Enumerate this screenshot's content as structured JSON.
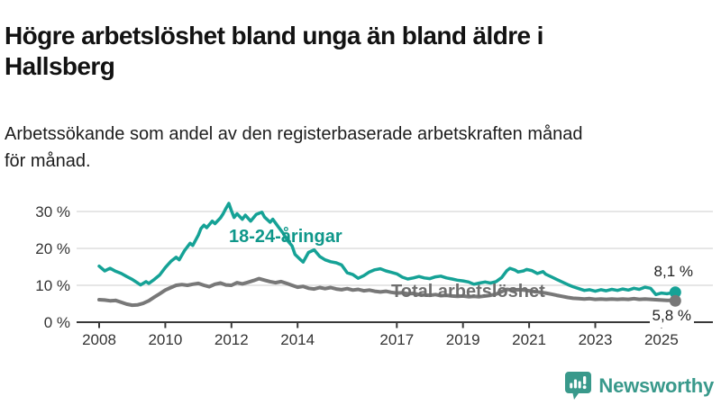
{
  "header": {
    "title_line1": "Högre arbetslöshet bland unga än bland äldre i",
    "title_line2": "Hallsberg",
    "subtitle_line1": "Arbetssökande som andel av den registerbaserade arbetskraften månad",
    "subtitle_line2": "för månad."
  },
  "chart_data": {
    "type": "line",
    "title": "Högre arbetslöshet bland unga än bland äldre i Hallsberg",
    "subtitle": "Arbetssökande som andel av den registerbaserade arbetskraften månad för månad.",
    "xlabel": "",
    "ylabel": "",
    "xlim": [
      2007.4,
      2025.9
    ],
    "ylim": [
      0,
      33
    ],
    "grid": "horizontal",
    "legend_position": "inline-labels",
    "y_ticks": [
      {
        "label": "30 %",
        "value": 30
      },
      {
        "label": "20 %",
        "value": 20
      },
      {
        "label": "10 %",
        "value": 10
      },
      {
        "label": "0 %",
        "value": 0
      }
    ],
    "x_ticks": [
      {
        "label": "2008",
        "year": 2008
      },
      {
        "label": "2010",
        "year": 2010
      },
      {
        "label": "2012",
        "year": 2012
      },
      {
        "label": "2014",
        "year": 2014
      },
      {
        "label": "2017",
        "year": 2017
      },
      {
        "label": "2019",
        "year": 2019
      },
      {
        "label": "2021",
        "year": 2021
      },
      {
        "label": "2023",
        "year": 2023
      },
      {
        "label": "2025",
        "year": 2025
      }
    ],
    "series": [
      {
        "name": "Total arbetslöshet",
        "color": "#787878",
        "line_width": 4,
        "end_label": "5,8 %",
        "end_value": 5.8,
        "points": [
          [
            2008.0,
            6.1
          ],
          [
            2008.17,
            6.0
          ],
          [
            2008.33,
            5.8
          ],
          [
            2008.5,
            5.9
          ],
          [
            2008.67,
            5.4
          ],
          [
            2008.83,
            4.9
          ],
          [
            2009.0,
            4.6
          ],
          [
            2009.17,
            4.7
          ],
          [
            2009.33,
            5.1
          ],
          [
            2009.5,
            5.8
          ],
          [
            2009.67,
            6.8
          ],
          [
            2009.83,
            7.7
          ],
          [
            2010.0,
            8.7
          ],
          [
            2010.17,
            9.4
          ],
          [
            2010.33,
            10.0
          ],
          [
            2010.5,
            10.2
          ],
          [
            2010.67,
            10.0
          ],
          [
            2010.83,
            10.3
          ],
          [
            2011.0,
            10.5
          ],
          [
            2011.17,
            10.0
          ],
          [
            2011.33,
            9.6
          ],
          [
            2011.5,
            10.3
          ],
          [
            2011.67,
            10.6
          ],
          [
            2011.83,
            10.1
          ],
          [
            2012.0,
            10.0
          ],
          [
            2012.17,
            10.7
          ],
          [
            2012.33,
            10.4
          ],
          [
            2012.5,
            10.8
          ],
          [
            2012.67,
            11.3
          ],
          [
            2012.83,
            11.8
          ],
          [
            2013.0,
            11.4
          ],
          [
            2013.17,
            11.0
          ],
          [
            2013.33,
            10.7
          ],
          [
            2013.5,
            11.0
          ],
          [
            2013.67,
            10.5
          ],
          [
            2013.83,
            10.0
          ],
          [
            2014.0,
            9.5
          ],
          [
            2014.17,
            9.7
          ],
          [
            2014.33,
            9.2
          ],
          [
            2014.5,
            9.0
          ],
          [
            2014.67,
            9.4
          ],
          [
            2014.83,
            9.1
          ],
          [
            2015.0,
            9.4
          ],
          [
            2015.17,
            9.0
          ],
          [
            2015.33,
            8.8
          ],
          [
            2015.5,
            9.1
          ],
          [
            2015.67,
            8.7
          ],
          [
            2015.83,
            8.9
          ],
          [
            2016.0,
            8.5
          ],
          [
            2016.17,
            8.7
          ],
          [
            2016.33,
            8.4
          ],
          [
            2016.5,
            8.2
          ],
          [
            2016.67,
            8.4
          ],
          [
            2016.83,
            8.1
          ],
          [
            2017.0,
            7.9
          ],
          [
            2017.17,
            8.0
          ],
          [
            2017.33,
            7.7
          ],
          [
            2017.5,
            7.8
          ],
          [
            2017.67,
            7.5
          ],
          [
            2017.83,
            7.4
          ],
          [
            2018.0,
            7.3
          ],
          [
            2018.17,
            7.5
          ],
          [
            2018.33,
            7.2
          ],
          [
            2018.5,
            7.3
          ],
          [
            2018.67,
            7.1
          ],
          [
            2018.83,
            7.0
          ],
          [
            2019.0,
            7.1
          ],
          [
            2019.17,
            6.9
          ],
          [
            2019.33,
            7.0
          ],
          [
            2019.5,
            6.9
          ],
          [
            2019.67,
            7.1
          ],
          [
            2019.83,
            7.3
          ],
          [
            2020.0,
            7.6
          ],
          [
            2020.17,
            8.3
          ],
          [
            2020.33,
            8.9
          ],
          [
            2020.5,
            8.7
          ],
          [
            2020.67,
            8.8
          ],
          [
            2020.83,
            8.7
          ],
          [
            2021.0,
            8.5
          ],
          [
            2021.17,
            8.3
          ],
          [
            2021.33,
            8.1
          ],
          [
            2021.5,
            7.9
          ],
          [
            2021.67,
            7.6
          ],
          [
            2021.83,
            7.3
          ],
          [
            2022.0,
            7.0
          ],
          [
            2022.17,
            6.7
          ],
          [
            2022.33,
            6.5
          ],
          [
            2022.5,
            6.4
          ],
          [
            2022.67,
            6.3
          ],
          [
            2022.83,
            6.4
          ],
          [
            2023.0,
            6.2
          ],
          [
            2023.17,
            6.3
          ],
          [
            2023.33,
            6.2
          ],
          [
            2023.5,
            6.3
          ],
          [
            2023.67,
            6.2
          ],
          [
            2023.83,
            6.3
          ],
          [
            2024.0,
            6.2
          ],
          [
            2024.17,
            6.4
          ],
          [
            2024.33,
            6.2
          ],
          [
            2024.5,
            6.3
          ],
          [
            2024.67,
            6.2
          ],
          [
            2024.83,
            6.1
          ],
          [
            2025.0,
            6.0
          ],
          [
            2025.17,
            5.9
          ],
          [
            2025.33,
            5.9
          ],
          [
            2025.42,
            5.8
          ]
        ]
      },
      {
        "name": "18-24-åringar",
        "color": "#15a296",
        "line_width": 3.5,
        "end_label": "8,1 %",
        "end_value": 8.1,
        "points": [
          [
            2008.0,
            15.2
          ],
          [
            2008.17,
            13.9
          ],
          [
            2008.33,
            14.6
          ],
          [
            2008.5,
            13.8
          ],
          [
            2008.67,
            13.2
          ],
          [
            2008.83,
            12.4
          ],
          [
            2009.0,
            11.6
          ],
          [
            2009.17,
            10.6
          ],
          [
            2009.25,
            10.1
          ],
          [
            2009.42,
            11.0
          ],
          [
            2009.5,
            10.5
          ],
          [
            2009.67,
            11.6
          ],
          [
            2009.83,
            12.8
          ],
          [
            2010.0,
            14.8
          ],
          [
            2010.17,
            16.5
          ],
          [
            2010.33,
            17.6
          ],
          [
            2010.42,
            16.9
          ],
          [
            2010.58,
            19.4
          ],
          [
            2010.75,
            21.4
          ],
          [
            2010.83,
            20.8
          ],
          [
            2011.0,
            23.6
          ],
          [
            2011.08,
            25.4
          ],
          [
            2011.17,
            26.3
          ],
          [
            2011.25,
            25.6
          ],
          [
            2011.42,
            27.4
          ],
          [
            2011.5,
            26.7
          ],
          [
            2011.67,
            28.3
          ],
          [
            2011.75,
            29.4
          ],
          [
            2011.83,
            30.8
          ],
          [
            2011.92,
            32.2
          ],
          [
            2012.0,
            30.2
          ],
          [
            2012.08,
            28.4
          ],
          [
            2012.17,
            29.4
          ],
          [
            2012.33,
            27.9
          ],
          [
            2012.42,
            29.0
          ],
          [
            2012.58,
            27.4
          ],
          [
            2012.75,
            29.2
          ],
          [
            2012.92,
            29.8
          ],
          [
            2013.0,
            28.5
          ],
          [
            2013.17,
            27.1
          ],
          [
            2013.25,
            27.9
          ],
          [
            2013.42,
            25.8
          ],
          [
            2013.58,
            23.9
          ],
          [
            2013.67,
            22.4
          ],
          [
            2013.83,
            20.7
          ],
          [
            2013.92,
            18.4
          ],
          [
            2014.08,
            17.0
          ],
          [
            2014.17,
            16.3
          ],
          [
            2014.33,
            18.9
          ],
          [
            2014.5,
            19.6
          ],
          [
            2014.67,
            17.8
          ],
          [
            2014.83,
            16.9
          ],
          [
            2015.0,
            16.4
          ],
          [
            2015.17,
            16.1
          ],
          [
            2015.33,
            15.5
          ],
          [
            2015.5,
            13.4
          ],
          [
            2015.67,
            12.9
          ],
          [
            2015.83,
            11.9
          ],
          [
            2016.0,
            12.6
          ],
          [
            2016.17,
            13.6
          ],
          [
            2016.33,
            14.2
          ],
          [
            2016.5,
            14.5
          ],
          [
            2016.67,
            13.9
          ],
          [
            2016.83,
            13.5
          ],
          [
            2017.0,
            13.1
          ],
          [
            2017.17,
            12.2
          ],
          [
            2017.33,
            11.7
          ],
          [
            2017.5,
            12.0
          ],
          [
            2017.67,
            12.4
          ],
          [
            2017.83,
            12.0
          ],
          [
            2018.0,
            11.8
          ],
          [
            2018.17,
            12.3
          ],
          [
            2018.33,
            12.5
          ],
          [
            2018.5,
            12.0
          ],
          [
            2018.67,
            11.7
          ],
          [
            2018.83,
            11.4
          ],
          [
            2019.0,
            11.2
          ],
          [
            2019.17,
            10.9
          ],
          [
            2019.33,
            10.3
          ],
          [
            2019.5,
            10.6
          ],
          [
            2019.67,
            10.9
          ],
          [
            2019.83,
            10.6
          ],
          [
            2020.0,
            11.0
          ],
          [
            2020.17,
            12.1
          ],
          [
            2020.33,
            14.0
          ],
          [
            2020.42,
            14.6
          ],
          [
            2020.58,
            14.1
          ],
          [
            2020.67,
            13.6
          ],
          [
            2020.83,
            13.9
          ],
          [
            2020.92,
            14.3
          ],
          [
            2021.08,
            14.0
          ],
          [
            2021.25,
            13.2
          ],
          [
            2021.42,
            13.7
          ],
          [
            2021.5,
            13.0
          ],
          [
            2021.67,
            12.3
          ],
          [
            2021.83,
            11.6
          ],
          [
            2022.0,
            10.9
          ],
          [
            2022.17,
            10.2
          ],
          [
            2022.33,
            9.6
          ],
          [
            2022.5,
            9.1
          ],
          [
            2022.67,
            8.6
          ],
          [
            2022.83,
            8.8
          ],
          [
            2023.0,
            8.4
          ],
          [
            2023.17,
            8.8
          ],
          [
            2023.33,
            8.5
          ],
          [
            2023.5,
            8.9
          ],
          [
            2023.67,
            8.6
          ],
          [
            2023.83,
            9.0
          ],
          [
            2024.0,
            8.7
          ],
          [
            2024.17,
            9.2
          ],
          [
            2024.33,
            8.9
          ],
          [
            2024.5,
            9.5
          ],
          [
            2024.67,
            9.2
          ],
          [
            2024.83,
            7.5
          ],
          [
            2025.0,
            7.9
          ],
          [
            2025.17,
            7.7
          ],
          [
            2025.33,
            8.0
          ],
          [
            2025.42,
            8.1
          ]
        ]
      }
    ]
  },
  "branding": {
    "name": "Newsworthy",
    "logo_icon": "speech-bubble-bar-chart-exclamation",
    "color": "#39998b"
  },
  "colors": {
    "young_series": "#15a296",
    "total_series": "#787878",
    "axis": "#383838",
    "grid": "#d8d8d8",
    "text": "#121212"
  }
}
